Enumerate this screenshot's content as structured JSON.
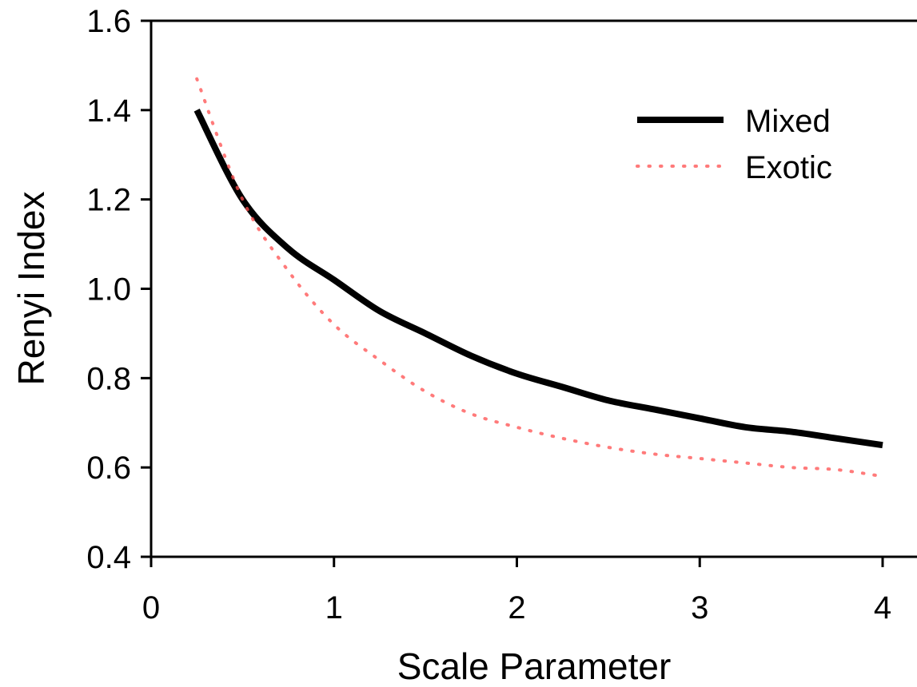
{
  "chart_data": {
    "type": "line",
    "title": "",
    "xlabel": "Scale Parameter",
    "ylabel": "Renyi Index",
    "xlim": [
      0,
      4
    ],
    "ylim": [
      0.4,
      1.6
    ],
    "x_ticks": [
      "0",
      "1",
      "2",
      "3",
      "4"
    ],
    "y_ticks": [
      "0.4",
      "0.6",
      "0.8",
      "1.0",
      "1.2",
      "1.4",
      "1.6"
    ],
    "grid": false,
    "legend_position": "top-right",
    "series": [
      {
        "name": "Mixed",
        "color": "#000000",
        "style": "solid",
        "x": [
          0.25,
          0.5,
          0.75,
          1.0,
          1.25,
          1.5,
          1.75,
          2.0,
          2.25,
          2.5,
          2.75,
          3.0,
          3.25,
          3.5,
          3.75,
          4.0
        ],
        "y": [
          1.4,
          1.2,
          1.09,
          1.02,
          0.95,
          0.9,
          0.85,
          0.81,
          0.78,
          0.75,
          0.73,
          0.71,
          0.69,
          0.68,
          0.665,
          0.65
        ]
      },
      {
        "name": "Exotic",
        "color": "#ff4d4d",
        "style": "dotted",
        "x": [
          0.25,
          0.5,
          0.75,
          1.0,
          1.25,
          1.5,
          1.75,
          2.0,
          2.25,
          2.5,
          2.75,
          3.0,
          3.25,
          3.5,
          3.75,
          4.0
        ],
        "y": [
          1.47,
          1.2,
          1.04,
          0.92,
          0.84,
          0.77,
          0.72,
          0.69,
          0.665,
          0.645,
          0.63,
          0.62,
          0.61,
          0.6,
          0.595,
          0.58
        ]
      }
    ]
  }
}
